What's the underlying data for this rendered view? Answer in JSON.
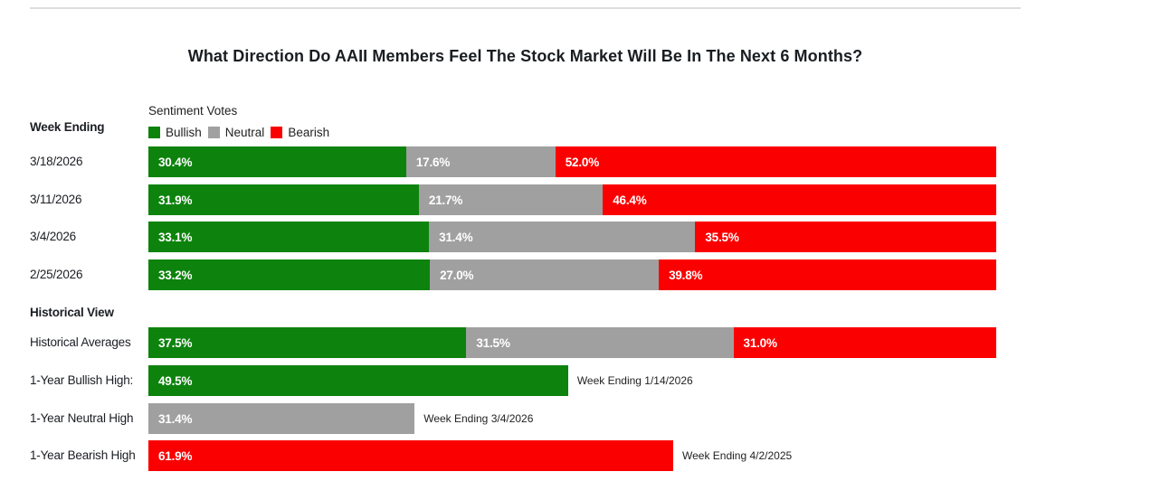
{
  "title": "What Direction Do AAII Members Feel The Stock Market Will Be In The Next 6 Months?",
  "colors": {
    "bullish": "#0D830D",
    "neutral": "#A0A0A0",
    "bearish": "#FA0000",
    "divider": "#DDDDDD",
    "bar_text": "#FFFFFF",
    "text": "#1B1E23"
  },
  "legend": {
    "title": "Sentiment Votes",
    "items": [
      {
        "name": "Bullish",
        "color": "#0D830D"
      },
      {
        "name": "Neutral",
        "color": "#A0A0A0"
      },
      {
        "name": "Bearish",
        "color": "#FA0000"
      }
    ]
  },
  "left_column": {
    "week_ending_heading": "Week Ending",
    "historical_heading": "Historical View"
  },
  "chart_data": {
    "type": "bar",
    "orientation": "horizontal_stacked",
    "unit": "%",
    "xlim": [
      0,
      100
    ],
    "series": [
      "Bullish",
      "Neutral",
      "Bearish"
    ],
    "weekly_rows": [
      {
        "label": "3/18/2026",
        "segments": [
          {
            "series": "Bullish",
            "value": 30.4
          },
          {
            "series": "Neutral",
            "value": 17.6
          },
          {
            "series": "Bearish",
            "value": 52.0
          }
        ]
      },
      {
        "label": "3/11/2026",
        "segments": [
          {
            "series": "Bullish",
            "value": 31.9
          },
          {
            "series": "Neutral",
            "value": 21.7
          },
          {
            "series": "Bearish",
            "value": 46.4
          }
        ]
      },
      {
        "label": "3/4/2026",
        "segments": [
          {
            "series": "Bullish",
            "value": 33.1
          },
          {
            "series": "Neutral",
            "value": 31.4
          },
          {
            "series": "Bearish",
            "value": 35.5
          }
        ]
      },
      {
        "label": "2/25/2026",
        "segments": [
          {
            "series": "Bullish",
            "value": 33.2
          },
          {
            "series": "Neutral",
            "value": 27.0
          },
          {
            "series": "Bearish",
            "value": 39.8
          }
        ]
      }
    ],
    "historical_rows": [
      {
        "label": "Historical Averages",
        "segments": [
          {
            "series": "Bullish",
            "value": 37.5
          },
          {
            "series": "Neutral",
            "value": 31.5
          },
          {
            "series": "Bearish",
            "value": 31.0
          }
        ]
      },
      {
        "label": "1-Year Bullish High:",
        "segments": [
          {
            "series": "Bullish",
            "value": 49.5
          }
        ],
        "annotation": "Week Ending 1/14/2026"
      },
      {
        "label": "1-Year Neutral High",
        "segments": [
          {
            "series": "Neutral",
            "value": 31.4
          }
        ],
        "annotation": "Week Ending 3/4/2026"
      },
      {
        "label": "1-Year Bearish High",
        "segments": [
          {
            "series": "Bearish",
            "value": 61.9
          }
        ],
        "annotation": "Week Ending 4/2/2025"
      }
    ]
  }
}
